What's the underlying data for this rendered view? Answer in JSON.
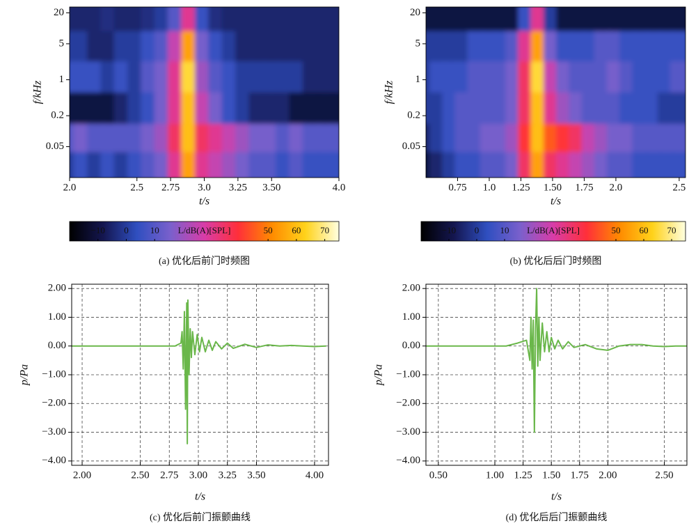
{
  "chart_data": [
    {
      "type": "heatmap",
      "caption": "(a) 优化后前门时频图",
      "xlabel": "t/s",
      "ylabel": "f/kHz",
      "log_y": true,
      "x": [
        2.0,
        2.1,
        2.2,
        2.3,
        2.4,
        2.5,
        2.6,
        2.7,
        2.8,
        2.9,
        3.0,
        3.1,
        3.2,
        3.3,
        3.4,
        3.5,
        3.6,
        3.7,
        3.8,
        3.9,
        4.0
      ],
      "y": [
        15,
        4,
        1,
        0.25,
        0.06,
        0.02
      ],
      "z": [
        [
          -5,
          -5,
          -5,
          -3,
          -5,
          -5,
          -3,
          0,
          10,
          30,
          5,
          -3,
          -5,
          -5,
          -5,
          -5,
          -5,
          -5,
          -5,
          -5,
          -5
        ],
        [
          0,
          0,
          -5,
          -5,
          0,
          0,
          5,
          10,
          25,
          55,
          15,
          5,
          0,
          -5,
          -5,
          -5,
          -5,
          -5,
          -5,
          -5,
          -5
        ],
        [
          5,
          5,
          5,
          0,
          5,
          0,
          10,
          15,
          30,
          65,
          20,
          10,
          5,
          0,
          0,
          0,
          0,
          0,
          -5,
          -5,
          -5
        ],
        [
          -10,
          -10,
          -10,
          -10,
          -5,
          0,
          5,
          15,
          30,
          60,
          25,
          15,
          5,
          0,
          -5,
          -5,
          -5,
          -10,
          -10,
          -10,
          -10
        ],
        [
          10,
          15,
          10,
          10,
          10,
          10,
          15,
          20,
          35,
          60,
          35,
          30,
          25,
          20,
          15,
          15,
          10,
          15,
          10,
          10,
          10
        ],
        [
          0,
          5,
          0,
          5,
          0,
          5,
          10,
          15,
          30,
          55,
          30,
          25,
          20,
          15,
          10,
          10,
          5,
          10,
          5,
          5,
          5
        ]
      ],
      "xlim": [
        2.0,
        4.0
      ],
      "ylim": [
        0.0125,
        26
      ],
      "xticks": [
        {
          "value": 2,
          "label": "2.0"
        },
        2.5,
        2.75,
        {
          "value": 3,
          "label": "3.0"
        },
        3.25,
        {
          "value": 3.5,
          "label": "3.50"
        },
        {
          "value": 4,
          "label": "4.0"
        }
      ],
      "yticks": [
        20,
        5,
        1,
        0.2,
        0.05
      ],
      "colorbar": {
        "label": "L/dB(A)[SPL]",
        "lim": [
          -20,
          75
        ],
        "ticks": [
          {
            "value": -10,
            "label": "−10"
          },
          0,
          10,
          50,
          60,
          70
        ],
        "colors": [
          "#000000",
          "#141650",
          "#2f4fc0",
          "#7a60cc",
          "#d83ca8",
          "#ff2f3a",
          "#ff8a00",
          "#ffd21a",
          "#ffffe0"
        ]
      }
    },
    {
      "type": "heatmap",
      "caption": "(b) 优化后后门时频图",
      "xlabel": "t/s",
      "ylabel": "f/kHz",
      "log_y": true,
      "x": [
        0.5,
        0.6,
        0.7,
        0.8,
        0.9,
        1.0,
        1.1,
        1.2,
        1.3,
        1.4,
        1.5,
        1.6,
        1.7,
        1.8,
        1.9,
        2.0,
        2.1,
        2.2,
        2.3,
        2.4,
        2.5
      ],
      "y": [
        15,
        4,
        1,
        0.25,
        0.06,
        0.02
      ],
      "z": [
        [
          -10,
          -10,
          -10,
          -10,
          -10,
          -10,
          -10,
          -10,
          5,
          30,
          0,
          -10,
          -10,
          -10,
          -10,
          -10,
          -10,
          -10,
          -10,
          -10,
          -10
        ],
        [
          0,
          0,
          0,
          0,
          5,
          5,
          5,
          10,
          30,
          55,
          15,
          5,
          5,
          5,
          10,
          10,
          5,
          5,
          5,
          5,
          5
        ],
        [
          0,
          5,
          5,
          5,
          10,
          10,
          10,
          15,
          35,
          65,
          25,
          15,
          10,
          10,
          10,
          15,
          10,
          5,
          5,
          5,
          10
        ],
        [
          0,
          0,
          5,
          10,
          10,
          10,
          10,
          15,
          35,
          60,
          30,
          20,
          15,
          10,
          10,
          10,
          5,
          5,
          5,
          0,
          0
        ],
        [
          -5,
          0,
          5,
          10,
          10,
          15,
          15,
          20,
          40,
          60,
          45,
          40,
          35,
          25,
          20,
          15,
          15,
          10,
          10,
          10,
          10
        ],
        [
          -10,
          -5,
          0,
          5,
          5,
          10,
          10,
          15,
          35,
          55,
          35,
          30,
          25,
          20,
          15,
          10,
          10,
          5,
          5,
          5,
          5
        ]
      ],
      "xlim": [
        0.5,
        2.55
      ],
      "ylim": [
        0.0125,
        26
      ],
      "xticks": [
        0.75,
        {
          "value": 1,
          "label": "1.0"
        },
        1.25,
        {
          "value": 1.5,
          "label": "1.50"
        },
        1.75,
        {
          "value": 2,
          "label": "2.0"
        },
        2.5
      ],
      "yticks": [
        20,
        5,
        1,
        0.2,
        0.05
      ],
      "colorbar": {
        "label": "L/dB(A)[SPL]",
        "lim": [
          -20,
          75
        ],
        "ticks": [
          {
            "value": -10,
            "label": "−10"
          },
          0,
          10,
          50,
          60,
          70
        ],
        "colors": [
          "#000000",
          "#141650",
          "#2f4fc0",
          "#7a60cc",
          "#d83ca8",
          "#ff2f3a",
          "#ff8a00",
          "#ffd21a",
          "#ffffe0"
        ]
      }
    },
    {
      "type": "line",
      "caption": "(c) 优化后前门振颤曲线",
      "xlabel": "t/s",
      "ylabel": "p/Pa",
      "color": "#6ab74a",
      "grid": true,
      "x": [
        1.91,
        2.5,
        2.8,
        2.85,
        2.86,
        2.87,
        2.88,
        2.89,
        2.9,
        2.905,
        2.91,
        2.92,
        2.93,
        2.94,
        2.95,
        2.97,
        2.99,
        3.01,
        3.03,
        3.06,
        3.09,
        3.12,
        3.15,
        3.2,
        3.25,
        3.3,
        3.4,
        3.5,
        3.6,
        3.7,
        3.8,
        3.9,
        4.0,
        4.1
      ],
      "values": [
        0,
        0,
        0,
        0.1,
        0.5,
        -0.8,
        1.2,
        -2.2,
        1.5,
        -3.4,
        1.6,
        -1.0,
        0.6,
        -0.4,
        0.5,
        -0.3,
        0.4,
        -0.2,
        0.3,
        -0.2,
        0.2,
        -0.15,
        0.15,
        -0.1,
        0.1,
        -0.08,
        0.06,
        -0.05,
        0.04,
        0,
        0.02,
        0,
        -0.02,
        0
      ],
      "xlim": [
        1.91,
        4.12
      ],
      "ylim": [
        -4.15,
        2.15
      ],
      "xticks": [
        {
          "value": 2,
          "label": "2.00"
        },
        {
          "value": 2.5,
          "label": "2.50"
        },
        2.75,
        {
          "value": 3,
          "label": "3.00"
        },
        3.25,
        {
          "value": 3.5,
          "label": "3.50"
        },
        {
          "value": 4,
          "label": "4.00"
        }
      ],
      "yticks": [
        {
          "value": 2,
          "label": "2.00"
        },
        {
          "value": 1,
          "label": "1.00"
        },
        {
          "value": 0,
          "label": "0.00"
        },
        {
          "value": -1,
          "label": "−1.00"
        },
        {
          "value": -2,
          "label": "−2.00"
        },
        {
          "value": -3,
          "label": "−3.00"
        },
        {
          "value": -4,
          "label": "−4.00"
        }
      ]
    },
    {
      "type": "line",
      "caption": "(d) 优化后后门振颤曲线",
      "xlabel": "t/s",
      "ylabel": "p/Pa",
      "color": "#6ab74a",
      "grid": true,
      "x": [
        0.39,
        1.1,
        1.2,
        1.28,
        1.31,
        1.32,
        1.33,
        1.34,
        1.35,
        1.36,
        1.37,
        1.38,
        1.39,
        1.4,
        1.42,
        1.44,
        1.46,
        1.48,
        1.5,
        1.53,
        1.56,
        1.6,
        1.65,
        1.7,
        1.8,
        1.9,
        2.0,
        2.1,
        2.2,
        2.3,
        2.4,
        2.5,
        2.6,
        2.7
      ],
      "values": [
        0,
        0,
        0.1,
        0.2,
        -0.5,
        1.0,
        -0.8,
        0.9,
        -3.0,
        0.6,
        2.0,
        -0.7,
        1.0,
        -0.5,
        0.8,
        -0.2,
        0.5,
        -0.2,
        0.3,
        -0.1,
        0.2,
        -0.1,
        0.15,
        -0.05,
        0.05,
        -0.1,
        -0.15,
        0,
        0.05,
        0.05,
        0,
        -0.02,
        0,
        0
      ],
      "xlim": [
        0.39,
        2.7
      ],
      "ylim": [
        -4.15,
        2.15
      ],
      "xticks": [
        {
          "value": 0.5,
          "label": "0.50"
        },
        {
          "value": 1,
          "label": "1.00"
        },
        1.25,
        {
          "value": 1.5,
          "label": "1.50"
        },
        1.75,
        {
          "value": 2,
          "label": "2.00"
        },
        {
          "value": 2.5,
          "label": "2.50"
        }
      ],
      "yticks": [
        {
          "value": 2,
          "label": "2.00"
        },
        {
          "value": 1,
          "label": "1.00"
        },
        {
          "value": 0,
          "label": "0.00"
        },
        {
          "value": -1,
          "label": "−1.00"
        },
        {
          "value": -2,
          "label": "−2.00"
        },
        {
          "value": -3,
          "label": "−3.00"
        },
        {
          "value": -4,
          "label": "−4.00"
        }
      ]
    }
  ]
}
